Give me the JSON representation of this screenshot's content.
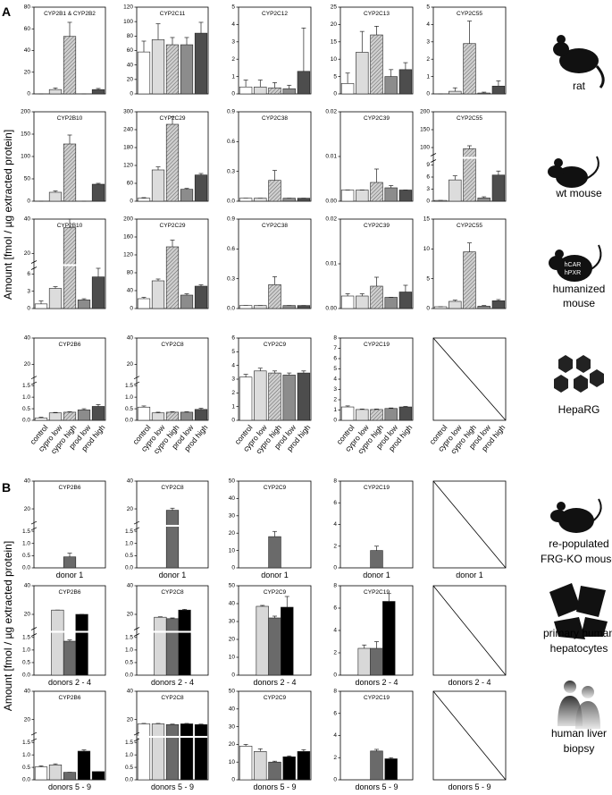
{
  "figure": {
    "panel_labels": [
      "A",
      "B"
    ],
    "y_axis_label": "Amount [fmol / µg extracted protein]",
    "species": [
      [
        "rat"
      ],
      [
        "wt mouse"
      ],
      [
        "humanized",
        "mouse"
      ],
      [
        "HepaRG"
      ],
      [
        "re-populated",
        "FRG-KO mouse"
      ],
      [
        "primary human",
        "hepatocytes"
      ],
      [
        "human liver",
        "biopsy"
      ]
    ],
    "transgene_labels": [
      "hCAR",
      "hPXR"
    ]
  },
  "chart_data": [
    {
      "type": "bar",
      "title": "CYP2B1 & CYP2B2",
      "values": [
        0,
        4,
        53,
        0,
        4
      ],
      "errors": [
        0,
        1.5,
        13,
        0,
        1
      ],
      "colors": [
        "#ffffff",
        "#dcdcdc",
        "url(#hatch)",
        "#8c8c8c",
        "#4d4d4d"
      ],
      "ylim": [
        0,
        80
      ],
      "yticks": [
        0,
        20,
        40,
        60,
        80
      ]
    },
    {
      "type": "bar",
      "title": "CYP2C11",
      "values": [
        58,
        75,
        68,
        68,
        84
      ],
      "errors": [
        15,
        22,
        10,
        10,
        15
      ],
      "colors": [
        "#ffffff",
        "#dcdcdc",
        "url(#hatch)",
        "#8c8c8c",
        "#4d4d4d"
      ],
      "ylim": [
        0,
        120
      ],
      "yticks": [
        0,
        20,
        40,
        60,
        80,
        100,
        120
      ]
    },
    {
      "type": "bar",
      "title": "CYP2C12",
      "values": [
        0.4,
        0.4,
        0.35,
        0.3,
        1.3
      ],
      "errors": [
        0.4,
        0.4,
        0.3,
        0.2,
        2.5
      ],
      "colors": [
        "#ffffff",
        "#dcdcdc",
        "url(#hatch)",
        "#8c8c8c",
        "#4d4d4d"
      ],
      "ylim": [
        0,
        5
      ],
      "yticks": [
        0,
        1,
        2,
        3,
        4,
        5
      ]
    },
    {
      "type": "bar",
      "title": "CYP2C13",
      "values": [
        3,
        12,
        17,
        5,
        7
      ],
      "errors": [
        3,
        6,
        2.5,
        2,
        2
      ],
      "colors": [
        "#ffffff",
        "#dcdcdc",
        "url(#hatch)",
        "#8c8c8c",
        "#4d4d4d"
      ],
      "ylim": [
        0,
        25
      ],
      "yticks": [
        0,
        5,
        10,
        15,
        20,
        25
      ]
    },
    {
      "type": "bar",
      "title": "CYP2C55",
      "values": [
        0,
        0.15,
        2.9,
        0.05,
        0.45
      ],
      "errors": [
        0,
        0.2,
        1.3,
        0.05,
        0.3
      ],
      "colors": [
        "#ffffff",
        "#dcdcdc",
        "url(#hatch)",
        "#8c8c8c",
        "#4d4d4d"
      ],
      "ylim": [
        0,
        5
      ],
      "yticks": [
        0,
        1,
        2,
        3,
        4,
        5
      ]
    },
    {
      "type": "bar",
      "title": "CYP2B10",
      "values": [
        0,
        20,
        128,
        0,
        38
      ],
      "errors": [
        0,
        3,
        20,
        0,
        2
      ],
      "colors": [
        "#ffffff",
        "#dcdcdc",
        "url(#hatch)",
        "#8c8c8c",
        "#4d4d4d"
      ],
      "ylim": [
        0,
        200
      ],
      "yticks": [
        0,
        50,
        100,
        150,
        200
      ]
    },
    {
      "type": "bar",
      "title": "CYP2C29",
      "values": [
        10,
        105,
        258,
        40,
        88
      ],
      "errors": [
        2,
        10,
        25,
        3,
        5
      ],
      "colors": [
        "#ffffff",
        "#dcdcdc",
        "url(#hatch)",
        "#8c8c8c",
        "#4d4d4d"
      ],
      "ylim": [
        0,
        300
      ],
      "yticks": [
        0,
        60,
        120,
        180,
        240,
        300
      ]
    },
    {
      "type": "bar",
      "title": "CYP2C38",
      "values": [
        0.03,
        0.03,
        0.21,
        0.03,
        0.03
      ],
      "errors": [
        0,
        0,
        0.1,
        0,
        0
      ],
      "colors": [
        "#ffffff",
        "#dcdcdc",
        "url(#hatch)",
        "#8c8c8c",
        "#4d4d4d"
      ],
      "ylim": [
        0,
        0.9
      ],
      "yticks": [
        {
          "value": 0,
          "label": "0.0"
        },
        0.3,
        0.6,
        0.9
      ]
    },
    {
      "type": "bar",
      "title": "CYP2C39",
      "values": [
        0.0025,
        0.0025,
        0.0042,
        0.003,
        0.0025
      ],
      "errors": [
        0,
        0,
        0.003,
        0.0005,
        0
      ],
      "colors": [
        "#ffffff",
        "#dcdcdc",
        "url(#hatch)",
        "#8c8c8c",
        "#4d4d4d"
      ],
      "ylim": [
        0,
        0.02
      ],
      "yticks": [
        {
          "value": 0,
          "label": "0.00"
        },
        0.01,
        0.02
      ]
    },
    {
      "type": "bar",
      "title": "CYP2C55",
      "values": [
        0.2,
        5.3,
        97,
        0.8,
        6.5
      ],
      "errors": [
        0,
        1,
        8,
        0.3,
        1
      ],
      "colors": [
        "#ffffff",
        "#dcdcdc",
        "url(#hatch)",
        "#8c8c8c",
        "#4d4d4d"
      ],
      "ylim": [
        0,
        200
      ],
      "ybreak": [
        10,
        80
      ],
      "yticks": [
        0,
        3,
        6,
        9,
        100,
        150,
        200
      ]
    },
    {
      "type": "bar",
      "title": "CYP2B10",
      "values": [
        0.8,
        3.5,
        35,
        1.5,
        5.5
      ],
      "errors": [
        0.5,
        0.3,
        5,
        0.2,
        1.5
      ],
      "colors": [
        "#ffffff",
        "#dcdcdc",
        "url(#hatch)",
        "#8c8c8c",
        "#4d4d4d"
      ],
      "ylim": [
        0,
        40
      ],
      "ybreak": [
        7,
        15
      ],
      "yticks": [
        0,
        3,
        6,
        20,
        40
      ]
    },
    {
      "type": "bar",
      "title": "CYP2C29",
      "values": [
        22,
        62,
        138,
        30,
        50
      ],
      "errors": [
        3,
        4,
        15,
        3,
        3
      ],
      "colors": [
        "#ffffff",
        "#dcdcdc",
        "url(#hatch)",
        "#8c8c8c",
        "#4d4d4d"
      ],
      "ylim": [
        0,
        200
      ],
      "yticks": [
        0,
        40,
        80,
        120,
        160,
        200
      ]
    },
    {
      "type": "bar",
      "title": "CYP2C38",
      "values": [
        0.03,
        0.03,
        0.24,
        0.03,
        0.03
      ],
      "errors": [
        0,
        0,
        0.08,
        0,
        0
      ],
      "colors": [
        "#ffffff",
        "#dcdcdc",
        "url(#hatch)",
        "#8c8c8c",
        "#4d4d4d"
      ],
      "ylim": [
        0,
        0.9
      ],
      "yticks": [
        {
          "value": 0,
          "label": "0.0"
        },
        0.3,
        0.6,
        0.9
      ]
    },
    {
      "type": "bar",
      "title": "CYP2C39",
      "values": [
        0.0028,
        0.0028,
        0.005,
        0.0025,
        0.0037
      ],
      "errors": [
        0.0005,
        0.0005,
        0.002,
        0,
        0.0015
      ],
      "colors": [
        "#ffffff",
        "#dcdcdc",
        "url(#hatch)",
        "#8c8c8c",
        "#4d4d4d"
      ],
      "ylim": [
        0,
        0.02
      ],
      "yticks": [
        {
          "value": 0,
          "label": "0.00"
        },
        0.01,
        0.02
      ]
    },
    {
      "type": "bar",
      "title": "CYP2C55",
      "values": [
        0.3,
        1.2,
        9.5,
        0.4,
        1.3
      ],
      "errors": [
        0,
        0.2,
        1.5,
        0.1,
        0.2
      ],
      "colors": [
        "#ffffff",
        "#dcdcdc",
        "url(#hatch)",
        "#8c8c8c",
        "#4d4d4d"
      ],
      "ylim": [
        0,
        15
      ],
      "yticks": [
        0,
        5,
        10,
        15
      ]
    },
    {
      "type": "bar",
      "title": "CYP2B6",
      "categories": [
        "control",
        "cypro low",
        "cypro high",
        "prod low",
        "prod high"
      ],
      "values": [
        0.1,
        0.32,
        0.35,
        0.45,
        0.6
      ],
      "errors": [
        0.03,
        0.02,
        0.02,
        0.05,
        0.08
      ],
      "colors": [
        "#ffffff",
        "#dcdcdc",
        "url(#hatch)",
        "#8c8c8c",
        "#4d4d4d"
      ],
      "ylim": [
        0,
        40
      ],
      "ybreak": [
        1.6,
        10
      ],
      "yticks": [
        {
          "value": 0,
          "label": "0.0"
        },
        0.5,
        {
          "value": 1,
          "label": "1.0"
        },
        1.5,
        20,
        40
      ]
    },
    {
      "type": "bar",
      "title": "CYP2C8",
      "categories": [
        "control",
        "cypro low",
        "cypro high",
        "prod low",
        "prod high"
      ],
      "values": [
        0.57,
        0.32,
        0.35,
        0.35,
        0.47
      ],
      "errors": [
        0.05,
        0.03,
        0.02,
        0.02,
        0.05
      ],
      "colors": [
        "#ffffff",
        "#dcdcdc",
        "url(#hatch)",
        "#8c8c8c",
        "#4d4d4d"
      ],
      "ylim": [
        0,
        40
      ],
      "ybreak": [
        1.6,
        10
      ],
      "yticks": [
        {
          "value": 0,
          "label": "0.0"
        },
        0.5,
        {
          "value": 1,
          "label": "1.0"
        },
        1.5,
        20,
        40
      ]
    },
    {
      "type": "bar",
      "title": "CYP2C9",
      "categories": [
        "control",
        "cypro low",
        "cypro high",
        "prod low",
        "prod high"
      ],
      "values": [
        3.15,
        3.6,
        3.45,
        3.3,
        3.45
      ],
      "errors": [
        0.2,
        0.2,
        0.15,
        0.15,
        0.15
      ],
      "colors": [
        "#ffffff",
        "#dcdcdc",
        "url(#hatch)",
        "#8c8c8c",
        "#4d4d4d"
      ],
      "ylim": [
        0,
        6
      ],
      "yticks": [
        0,
        1,
        2,
        3,
        4,
        5,
        6
      ]
    },
    {
      "type": "bar",
      "title": "CYP2C19",
      "categories": [
        "control",
        "cypro low",
        "cypro high",
        "prod low",
        "prod high"
      ],
      "values": [
        1.3,
        1.05,
        1.05,
        1.15,
        1.3
      ],
      "errors": [
        0.1,
        0.05,
        0.05,
        0.05,
        0.05
      ],
      "colors": [
        "#ffffff",
        "#dcdcdc",
        "url(#hatch)",
        "#8c8c8c",
        "#4d4d4d"
      ],
      "ylim": [
        0,
        8
      ],
      "yticks": [
        0,
        1,
        2,
        3,
        4,
        5,
        6,
        7,
        8
      ]
    },
    {
      "type": "empty",
      "categories": [
        "control",
        "cypro low",
        "cypro high",
        "prod low",
        "prod high"
      ]
    },
    {
      "type": "bar",
      "title": "CYP2B6",
      "xlabel": "donor 1",
      "values": [
        0.45
      ],
      "errors": [
        0.15
      ],
      "colors": [
        "#6a6a6a"
      ],
      "ylim": [
        0,
        40
      ],
      "ybreak": [
        1.6,
        10
      ],
      "yticks": [
        {
          "value": 0,
          "label": "0.0"
        },
        0.5,
        {
          "value": 1,
          "label": "1.0"
        },
        1.5,
        20,
        40
      ]
    },
    {
      "type": "bar",
      "title": "CYP2C8",
      "xlabel": "donor 1",
      "values": [
        19
      ],
      "errors": [
        1.5
      ],
      "colors": [
        "#6a6a6a"
      ],
      "ylim": [
        0,
        40
      ],
      "ybreak": [
        1.6,
        10
      ],
      "yticks": [
        {
          "value": 0,
          "label": "0.0"
        },
        0.5,
        {
          "value": 1,
          "label": "1.0"
        },
        1.5,
        20,
        40
      ]
    },
    {
      "type": "bar",
      "title": "CYP2C9",
      "xlabel": "donor 1",
      "values": [
        18
      ],
      "errors": [
        3
      ],
      "colors": [
        "#6a6a6a"
      ],
      "ylim": [
        0,
        50
      ],
      "yticks": [
        0,
        10,
        20,
        30,
        40,
        50
      ]
    },
    {
      "type": "bar",
      "title": "CYP2C19",
      "xlabel": "donor 1",
      "values": [
        1.6
      ],
      "errors": [
        0.4
      ],
      "colors": [
        "#6a6a6a"
      ],
      "ylim": [
        0,
        8
      ],
      "yticks": [
        0,
        2,
        4,
        6,
        8
      ]
    },
    {
      "type": "empty",
      "xlabel": "donor 1"
    },
    {
      "type": "bar",
      "title": "CYP2B6",
      "xlabel": "donors 2 - 4",
      "values": [
        23,
        1.35,
        20
      ],
      "errors": [
        0,
        0.05,
        0
      ],
      "colors": [
        "#d8d8d8",
        "#6a6a6a",
        "#000000"
      ],
      "ylim": [
        0,
        40
      ],
      "ybreak": [
        1.6,
        10
      ],
      "yticks": [
        {
          "value": 0,
          "label": "0.0"
        },
        0.5,
        {
          "value": 1,
          "label": "1.0"
        },
        1.5,
        20,
        40
      ]
    },
    {
      "type": "bar",
      "title": "CYP2C8",
      "xlabel": "donors 2 - 4",
      "values": [
        18,
        17,
        23
      ],
      "errors": [
        0.3,
        0.5,
        0.5
      ],
      "colors": [
        "#d8d8d8",
        "#6a6a6a",
        "#000000"
      ],
      "ylim": [
        0,
        40
      ],
      "ybreak": [
        1.6,
        10
      ],
      "yticks": [
        {
          "value": 0,
          "label": "0.0"
        },
        0.5,
        {
          "value": 1,
          "label": "1.0"
        },
        1.5,
        20,
        40
      ]
    },
    {
      "type": "bar",
      "title": "CYP2C9",
      "xlabel": "donors 2 - 4",
      "values": [
        38.5,
        32,
        38
      ],
      "errors": [
        0.5,
        1,
        6
      ],
      "colors": [
        "#d8d8d8",
        "#6a6a6a",
        "#000000"
      ],
      "ylim": [
        0,
        50
      ],
      "yticks": [
        0,
        10,
        20,
        30,
        40,
        50
      ]
    },
    {
      "type": "bar",
      "title": "CYP2C19",
      "xlabel": "donors 2 - 4",
      "values": [
        2.4,
        2.4,
        6.6
      ],
      "errors": [
        0.3,
        0.6,
        0.7
      ],
      "colors": [
        "#d8d8d8",
        "#6a6a6a",
        "#000000"
      ],
      "ylim": [
        0,
        8
      ],
      "yticks": [
        0,
        2,
        4,
        6,
        8
      ]
    },
    {
      "type": "empty",
      "xlabel": "donors 2 - 4"
    },
    {
      "type": "bar",
      "title": "CYP2B6",
      "xlabel": "donors 5 - 9",
      "values": [
        0.52,
        0.6,
        0.3,
        1.15,
        0.33
      ],
      "errors": [
        0.04,
        0.04,
        0,
        0.05,
        0
      ],
      "colors": [
        "#ffffff",
        "#d8d8d8",
        "#6a6a6a",
        "#000000",
        "#000000"
      ],
      "ylim": [
        0,
        40
      ],
      "ybreak": [
        1.6,
        10
      ],
      "yticks": [
        {
          "value": 0,
          "label": "0.0"
        },
        0.5,
        {
          "value": 1,
          "label": "1.0"
        },
        1.5,
        20,
        40
      ]
    },
    {
      "type": "bar",
      "title": "CYP2C8",
      "xlabel": "donors 5 - 9",
      "values": [
        17,
        17,
        16.5,
        17,
        16.5
      ],
      "errors": [
        0.3,
        0.3,
        0.3,
        0.3,
        0.3
      ],
      "colors": [
        "#ffffff",
        "#d8d8d8",
        "#6a6a6a",
        "#000000",
        "#000000"
      ],
      "ylim": [
        0,
        40
      ],
      "ybreak": [
        1.6,
        10
      ],
      "yticks": [
        {
          "value": 0,
          "label": "0.0"
        },
        0.5,
        {
          "value": 1,
          "label": "1.0"
        },
        1.5,
        20,
        40
      ]
    },
    {
      "type": "bar",
      "title": "CYP2C9",
      "xlabel": "donors 5 - 9",
      "values": [
        19,
        16,
        10,
        13,
        16
      ],
      "errors": [
        1,
        1.5,
        0.5,
        0.5,
        1
      ],
      "colors": [
        "#ffffff",
        "#d8d8d8",
        "#6a6a6a",
        "#000000",
        "#000000"
      ],
      "ylim": [
        0,
        50
      ],
      "yticks": [
        0,
        10,
        20,
        30,
        40,
        50
      ]
    },
    {
      "type": "bar",
      "title": "CYP2C19",
      "xlabel": "donors 5 - 9",
      "values": [
        null,
        null,
        2.6,
        1.9,
        null
      ],
      "errors": [
        null,
        null,
        0.15,
        0.1,
        null
      ],
      "colors": [
        "#ffffff",
        "#d8d8d8",
        "#6a6a6a",
        "#000000",
        "#000000"
      ],
      "ylim": [
        0,
        8
      ],
      "yticks": [
        0,
        2,
        4,
        6,
        8
      ]
    },
    {
      "type": "empty",
      "xlabel": "donors 5 - 9"
    }
  ]
}
